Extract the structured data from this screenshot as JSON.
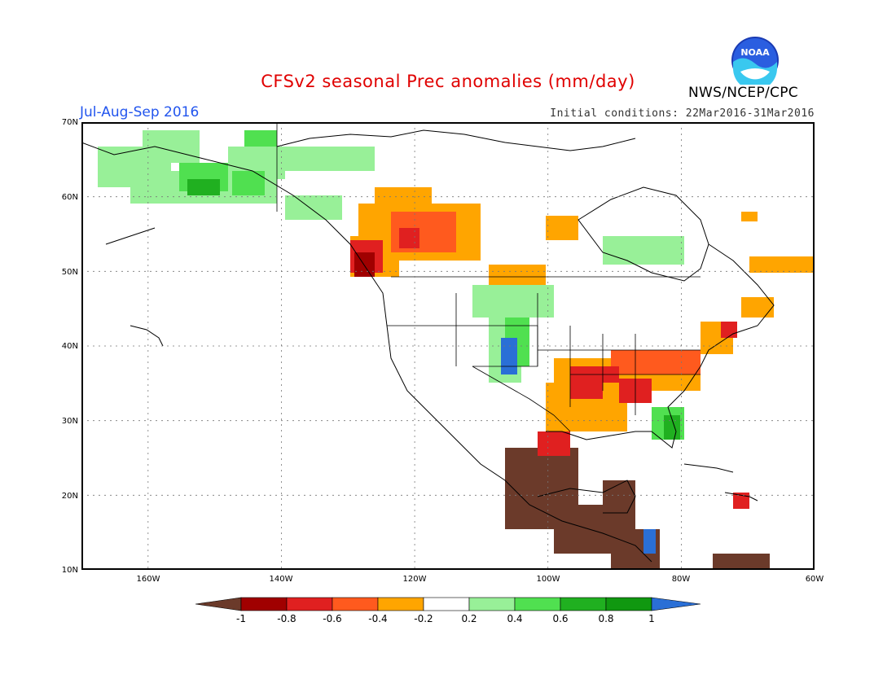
{
  "header": {
    "title": "CFSv2 seasonal Prec anomalies (mm/day)",
    "season": "Jul-Aug-Sep 2016",
    "initial_conditions": "Initial conditions: 22Mar2016-31Mar2016",
    "agency": "NWS/NCEP/CPC",
    "logo_text": "NOAA"
  },
  "map": {
    "lon_range": [
      -170,
      -60
    ],
    "lat_range": [
      10,
      70
    ],
    "lat_labels": [
      "70N",
      "60N",
      "50N",
      "40N",
      "30N",
      "20N",
      "10N"
    ],
    "lon_labels": [
      "160W",
      "140W",
      "120W",
      "100W",
      "80W",
      "60W"
    ],
    "grid": "dotted"
  },
  "colorbar": {
    "labels": [
      "-1",
      "-0.8",
      "-0.6",
      "-0.4",
      "-0.2",
      "0.2",
      "0.4",
      "0.6",
      "0.8",
      "1"
    ],
    "low_arrow_color": "#6b3a2a",
    "high_arrow_color": "#2a6fd6",
    "colors": [
      "#a00000",
      "#e02020",
      "#ff5a1e",
      "#ffa500",
      "#ffffff",
      "#98f098",
      "#50e050",
      "#20b020",
      "#109810"
    ]
  },
  "legend_colors": {
    "dark_brown": "#6b3a2a",
    "dark_red": "#a00000",
    "red": "#e02020",
    "red_orange": "#ff5a1e",
    "orange": "#ffa500",
    "light_green": "#98f098",
    "green": "#50e050",
    "dark_green": "#20b020",
    "darkest_green": "#109810",
    "blue": "#2a6fd6"
  }
}
